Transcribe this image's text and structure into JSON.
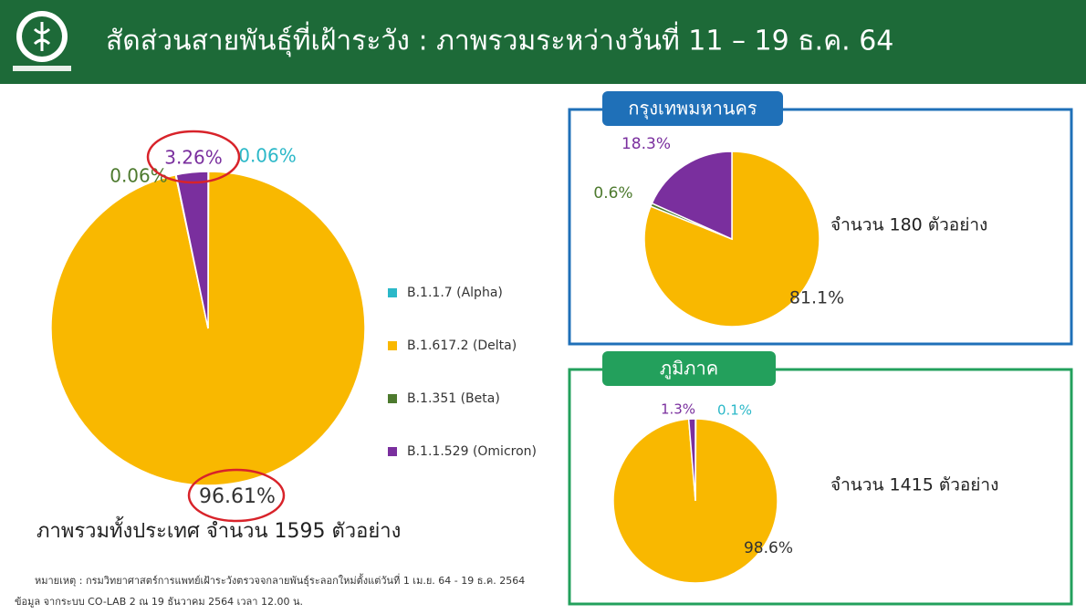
{
  "header": {
    "title": "สัดส่วนสายพันธุ์ที่เฝ้าระวัง : ภาพรวมระหว่างวันที่ 11 – 19 ธ.ค. 64"
  },
  "chart_data": [
    {
      "type": "pie",
      "categories": [
        "B.1.1.7 (Alpha)",
        "B.1.617.2 (Delta)",
        "B.1.351 (Beta)",
        "B.1.1.529 (Omicron)"
      ],
      "colors": [
        "#2bb8c8",
        "#f9b800",
        "#4d7a2e",
        "#7a2f9e"
      ],
      "values": [
        0.06,
        96.61,
        0.06,
        3.26
      ],
      "value_labels": [
        "0.06%",
        "96.61%",
        "0.06%",
        "3.26%"
      ],
      "caption": "ภาพรวมทั้งประเทศ จำนวน 1595 ตัวอย่าง",
      "legend": "right"
    },
    {
      "type": "pie",
      "title": "กรุงเทพมหานคร",
      "categories": [
        "B.1.1.7 (Alpha)",
        "B.1.617.2 (Delta)",
        "B.1.351 (Beta)",
        "B.1.1.529 (Omicron)"
      ],
      "colors": [
        "#2bb8c8",
        "#f9b800",
        "#4d7a2e",
        "#7a2f9e"
      ],
      "values": [
        null,
        81.1,
        0.6,
        18.3
      ],
      "value_labels": [
        null,
        "81.1%",
        "0.6%",
        "18.3%"
      ],
      "caption": "จำนวน 180 ตัวอย่าง"
    },
    {
      "type": "pie",
      "title": "ภูมิภาค",
      "categories": [
        "B.1.1.7 (Alpha)",
        "B.1.617.2 (Delta)",
        "B.1.351 (Beta)",
        "B.1.1.529 (Omicron)"
      ],
      "colors": [
        "#2bb8c8",
        "#f9b800",
        "#4d7a2e",
        "#7a2f9e"
      ],
      "values": [
        0.1,
        98.6,
        null,
        1.3
      ],
      "value_labels": [
        "0.1%",
        "98.6%",
        null,
        "1.3%"
      ],
      "caption": "จำนวน 1415 ตัวอย่าง"
    }
  ],
  "notes": [
    "หมายเหตุ : กรมวิทยาศาสตร์การแพทย์เฝ้าระวังตรวจจกลายพันธุ์ระลอกใหม่ตั้งแต่วันที่ 1 เม.ย. 64 - 19 ธ.ค. 2564",
    "ข้อมูล จากระบบ CO-LAB 2 ณ 19 ธันวาคม 2564 เวลา 12.00 น."
  ]
}
